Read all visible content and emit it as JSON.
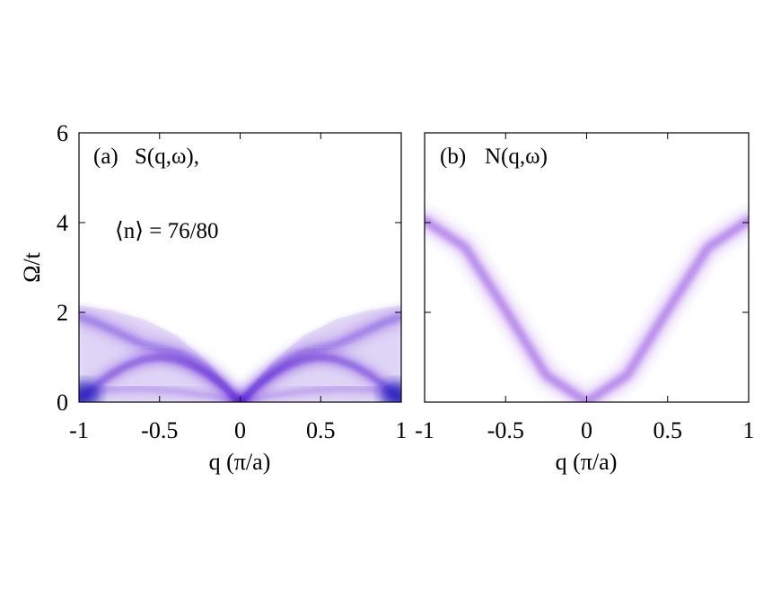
{
  "chart_data": [
    {
      "type": "heatmap",
      "panel_label": "(a)",
      "title": "S(q,ω),",
      "annotation": "⟨n⟩ = 76/80",
      "xlabel": "q (π/a)",
      "ylabel": "Ω/t",
      "xlim": [
        -1,
        1
      ],
      "ylim": [
        0,
        6
      ],
      "xticks": [
        "-1",
        "-0.5",
        "0",
        "0.5",
        "1"
      ],
      "yticks": [
        "0",
        "2",
        "4",
        "6"
      ],
      "color": "#4a10d0",
      "ridges": [
        {
          "name": "inner",
          "x": [
            0.0,
            0.1,
            0.2,
            0.3,
            0.4,
            0.5,
            0.6,
            0.7,
            0.8,
            0.9,
            1.0
          ],
          "y": [
            0.0,
            0.35,
            0.62,
            0.82,
            0.95,
            1.0,
            0.95,
            0.82,
            0.62,
            0.35,
            0.05
          ]
        },
        {
          "name": "outer",
          "x": [
            0.0,
            0.1,
            0.2,
            0.3,
            0.4,
            0.5,
            0.6,
            0.7,
            0.8,
            0.9,
            1.0
          ],
          "y": [
            0.0,
            0.38,
            0.7,
            0.95,
            1.12,
            1.2,
            1.28,
            1.45,
            1.62,
            1.78,
            1.9
          ]
        },
        {
          "name": "low",
          "x": [
            0.0,
            0.2,
            0.4,
            0.6,
            0.8,
            1.0
          ],
          "y": [
            0.0,
            0.15,
            0.25,
            0.3,
            0.28,
            0.2
          ]
        }
      ],
      "upper_edge": {
        "x": [
          0.0,
          0.2,
          0.4,
          0.6,
          0.8,
          1.0
        ],
        "y": [
          0.05,
          0.9,
          1.5,
          1.85,
          2.05,
          2.15
        ]
      }
    },
    {
      "type": "heatmap",
      "panel_label": "(b)",
      "title": "N(q,ω)",
      "xlabel": "q (π/a)",
      "xlim": [
        -1,
        1
      ],
      "ylim": [
        0,
        6
      ],
      "xticks": [
        "-1",
        "-0.5",
        "0",
        "0.5",
        "1"
      ],
      "color": "#8a3ee0",
      "ridge": {
        "x": [
          -1.0,
          -0.75,
          -0.5,
          -0.25,
          0.0,
          0.25,
          0.5,
          0.75,
          1.0
        ],
        "y": [
          4.05,
          3.45,
          2.05,
          0.6,
          0.0,
          0.6,
          2.05,
          3.45,
          4.05
        ]
      }
    }
  ]
}
